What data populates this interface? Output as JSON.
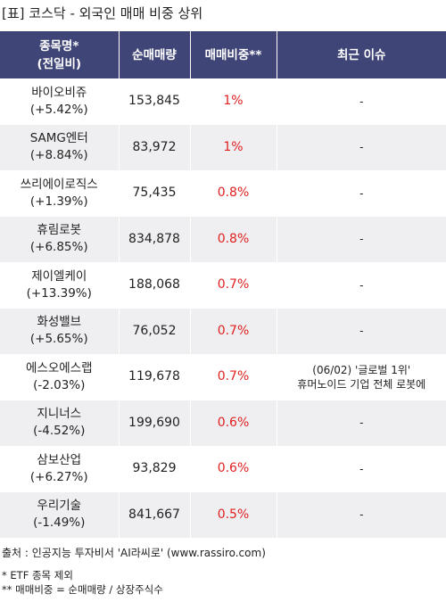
{
  "title": "[표] 코스닥 - 외국인 매매 비중 상위",
  "columns": {
    "name_line1": "종목명*",
    "name_line2": "(전일비)",
    "volume": "순매매량",
    "ratio": "매매비중**",
    "issue": "최근 이슈"
  },
  "rows": [
    {
      "name": "바이오비쥬",
      "change": "(+5.42%)",
      "volume": "153,845",
      "ratio": "1%",
      "issue_line1": "-",
      "issue_line2": ""
    },
    {
      "name": "SAMG엔터",
      "change": "(+8.84%)",
      "volume": "83,972",
      "ratio": "1%",
      "issue_line1": "-",
      "issue_line2": ""
    },
    {
      "name": "쓰리에이로직스",
      "change": "(+1.39%)",
      "volume": "75,435",
      "ratio": "0.8%",
      "issue_line1": "-",
      "issue_line2": ""
    },
    {
      "name": "휴림로봇",
      "change": "(+6.85%)",
      "volume": "834,878",
      "ratio": "0.8%",
      "issue_line1": "-",
      "issue_line2": ""
    },
    {
      "name": "제이엘케이",
      "change": "(+13.39%)",
      "volume": "188,068",
      "ratio": "0.7%",
      "issue_line1": "-",
      "issue_line2": ""
    },
    {
      "name": "화성밸브",
      "change": "(+5.65%)",
      "volume": "76,052",
      "ratio": "0.7%",
      "issue_line1": "-",
      "issue_line2": ""
    },
    {
      "name": "에스오에스랩",
      "change": "(-2.03%)",
      "volume": "119,678",
      "ratio": "0.7%",
      "issue_line1": "(06/02) '글로벌 1위'",
      "issue_line2": "휴머노이드 기업 전체 로봇에"
    },
    {
      "name": "지니너스",
      "change": "(-4.52%)",
      "volume": "199,690",
      "ratio": "0.6%",
      "issue_line1": "-",
      "issue_line2": ""
    },
    {
      "name": "삼보산업",
      "change": "(+6.27%)",
      "volume": "93,829",
      "ratio": "0.6%",
      "issue_line1": "-",
      "issue_line2": ""
    },
    {
      "name": "우리기술",
      "change": "(-1.49%)",
      "volume": "841,667",
      "ratio": "0.5%",
      "issue_line1": "-",
      "issue_line2": ""
    }
  ],
  "source": "출처 : 인공지능 투자비서 'AI라씨로' (www.rassiro.com)",
  "note1": "* ETF 종목 제외",
  "note2": "** 매매비중 = 순매매량 / 상장주식수",
  "colors": {
    "header_bg": "#3f4577",
    "header_text": "#ffffff",
    "ratio_text": "#e02020",
    "row_alt_bg": "#efeff1"
  }
}
